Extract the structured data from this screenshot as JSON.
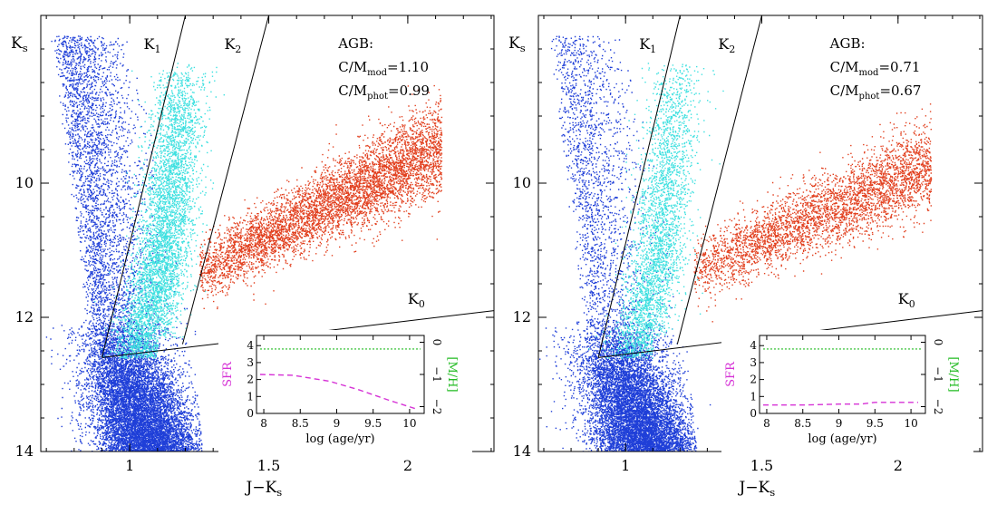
{
  "chart_data": [
    {
      "type": "scatter",
      "xlabel": "J−K",
      "xlabel_sub": "s",
      "ylabel": "K",
      "ylabel_sub": "s",
      "xlim": [
        0.68,
        2.31
      ],
      "ylim": [
        14,
        7.5
      ],
      "y_inverted": true,
      "xticks": [
        1,
        1.5,
        2
      ],
      "xtick_labels": [
        "1",
        "1.5",
        "2"
      ],
      "yticks": [
        10,
        12,
        14
      ],
      "ytick_labels": [
        "10",
        "12",
        "14"
      ],
      "series": [
        {
          "color": "#1f3fd8",
          "description_points": [
            [
              0.8,
              13.2
            ],
            [
              1.0,
              13.5
            ],
            [
              1.15,
              12.6
            ],
            [
              0.9,
              10.5
            ],
            [
              0.85,
              8.8
            ]
          ]
        },
        {
          "color": "#3ee0e0",
          "description_points": [
            [
              1.05,
              12.0
            ],
            [
              1.15,
              11.0
            ],
            [
              1.2,
              10.0
            ],
            [
              1.15,
              8.5
            ]
          ]
        },
        {
          "color": "#e2401f",
          "description_points": [
            [
              1.25,
              11.3
            ],
            [
              1.6,
              10.6
            ],
            [
              1.9,
              10.0
            ],
            [
              2.1,
              9.6
            ]
          ]
        }
      ],
      "annotations": {
        "agb_label": "AGB:",
        "cm_mod_prefix": "C/M",
        "cm_mod_sub": "mod",
        "cm_mod_value": "=1.10",
        "cm_phot_prefix": "C/M",
        "cm_phot_sub": "phot",
        "cm_phot_value": "=0.99",
        "line_labels": [
          {
            "main": "K",
            "sub": "1"
          },
          {
            "main": "K",
            "sub": "2"
          },
          {
            "main": "K",
            "sub": "0"
          }
        ]
      },
      "boundary_lines": {
        "K1": [
          [
            0.9,
            12.6
          ],
          [
            1.2,
            7.5
          ]
        ],
        "K2": [
          [
            1.19,
            12.4
          ],
          [
            1.5,
            7.5
          ]
        ],
        "K0": [
          [
            0.9,
            12.6
          ],
          [
            2.31,
            11.9
          ]
        ]
      },
      "inset": {
        "xlabel": "log (age/yr)",
        "ylabel_left": "SFR",
        "ylabel_right": "[M/H]",
        "xlim": [
          7.9,
          10.2
        ],
        "xticks": [
          8,
          8.5,
          9,
          9.5,
          10
        ],
        "xtick_labels": [
          "8",
          "8.5",
          "9",
          "9.5",
          "10"
        ],
        "ylim_left": [
          0,
          4.6
        ],
        "yticks_left": [
          0,
          1,
          2,
          3,
          4
        ],
        "ytick_labels_left": [
          "0",
          "1",
          "2",
          "3",
          "4"
        ],
        "yticks_right": [
          0,
          -1,
          -2
        ],
        "ytick_labels_right": [
          "0",
          "−1",
          "−2"
        ],
        "sfr": {
          "color": "#d633d6",
          "x": [
            7.95,
            8.4,
            8.9,
            9.3,
            9.7,
            10.1
          ],
          "y": [
            2.3,
            2.25,
            1.9,
            1.4,
            0.8,
            0.25
          ]
        },
        "metallicity": {
          "color": "#22bb22",
          "value_left_units": 3.8
        }
      }
    },
    {
      "type": "scatter",
      "xlabel": "J−K",
      "xlabel_sub": "s",
      "ylabel": "K",
      "ylabel_sub": "s",
      "xlim": [
        0.68,
        2.31
      ],
      "ylim": [
        14,
        7.5
      ],
      "y_inverted": true,
      "xticks": [
        1,
        1.5,
        2
      ],
      "xtick_labels": [
        "1",
        "1.5",
        "2"
      ],
      "yticks": [
        10,
        12,
        14
      ],
      "ytick_labels": [
        "10",
        "12",
        "14"
      ],
      "series": [
        {
          "color": "#1f3fd8",
          "description_points": [
            [
              0.8,
              13.2
            ],
            [
              1.0,
              13.5
            ],
            [
              1.15,
              12.6
            ],
            [
              0.9,
              10.5
            ],
            [
              0.85,
              8.8
            ]
          ]
        },
        {
          "color": "#3ee0e0",
          "description_points": [
            [
              1.05,
              12.0
            ],
            [
              1.15,
              11.0
            ],
            [
              1.2,
              10.0
            ],
            [
              1.2,
              8.5
            ]
          ]
        },
        {
          "color": "#e2401f",
          "description_points": [
            [
              1.3,
              11.2
            ],
            [
              1.6,
              10.8
            ],
            [
              1.9,
              10.3
            ],
            [
              2.05,
              9.8
            ]
          ]
        }
      ],
      "annotations": {
        "agb_label": "AGB:",
        "cm_mod_prefix": "C/M",
        "cm_mod_sub": "mod",
        "cm_mod_value": "=0.71",
        "cm_phot_prefix": "C/M",
        "cm_phot_sub": "phot",
        "cm_phot_value": "=0.67",
        "line_labels": [
          {
            "main": "K",
            "sub": "1"
          },
          {
            "main": "K",
            "sub": "2"
          },
          {
            "main": "K",
            "sub": "0"
          }
        ]
      },
      "boundary_lines": {
        "K1": [
          [
            0.9,
            12.6
          ],
          [
            1.2,
            7.5
          ]
        ],
        "K2": [
          [
            1.19,
            12.4
          ],
          [
            1.5,
            7.5
          ]
        ],
        "K0": [
          [
            0.9,
            12.6
          ],
          [
            2.31,
            11.9
          ]
        ]
      },
      "inset": {
        "xlabel": "log (age/yr)",
        "ylabel_left": "SFR",
        "ylabel_right": "[M/H]",
        "xlim": [
          7.9,
          10.2
        ],
        "xticks": [
          8,
          8.5,
          9,
          9.5,
          10
        ],
        "xtick_labels": [
          "8",
          "8.5",
          "9",
          "9.5",
          "10"
        ],
        "ylim_left": [
          0,
          4.6
        ],
        "yticks_left": [
          0,
          1,
          2,
          3,
          4
        ],
        "ytick_labels_left": [
          "0",
          "1",
          "2",
          "3",
          "4"
        ],
        "yticks_right": [
          0,
          -1,
          -2
        ],
        "ytick_labels_right": [
          "0",
          "−1",
          "−2"
        ],
        "sfr": {
          "color": "#d633d6",
          "x": [
            7.95,
            8.5,
            9.0,
            9.3,
            9.5,
            10.1
          ],
          "y": [
            0.5,
            0.5,
            0.55,
            0.55,
            0.65,
            0.65
          ]
        },
        "metallicity": {
          "color": "#22bb22",
          "value_left_units": 3.8
        }
      }
    }
  ]
}
